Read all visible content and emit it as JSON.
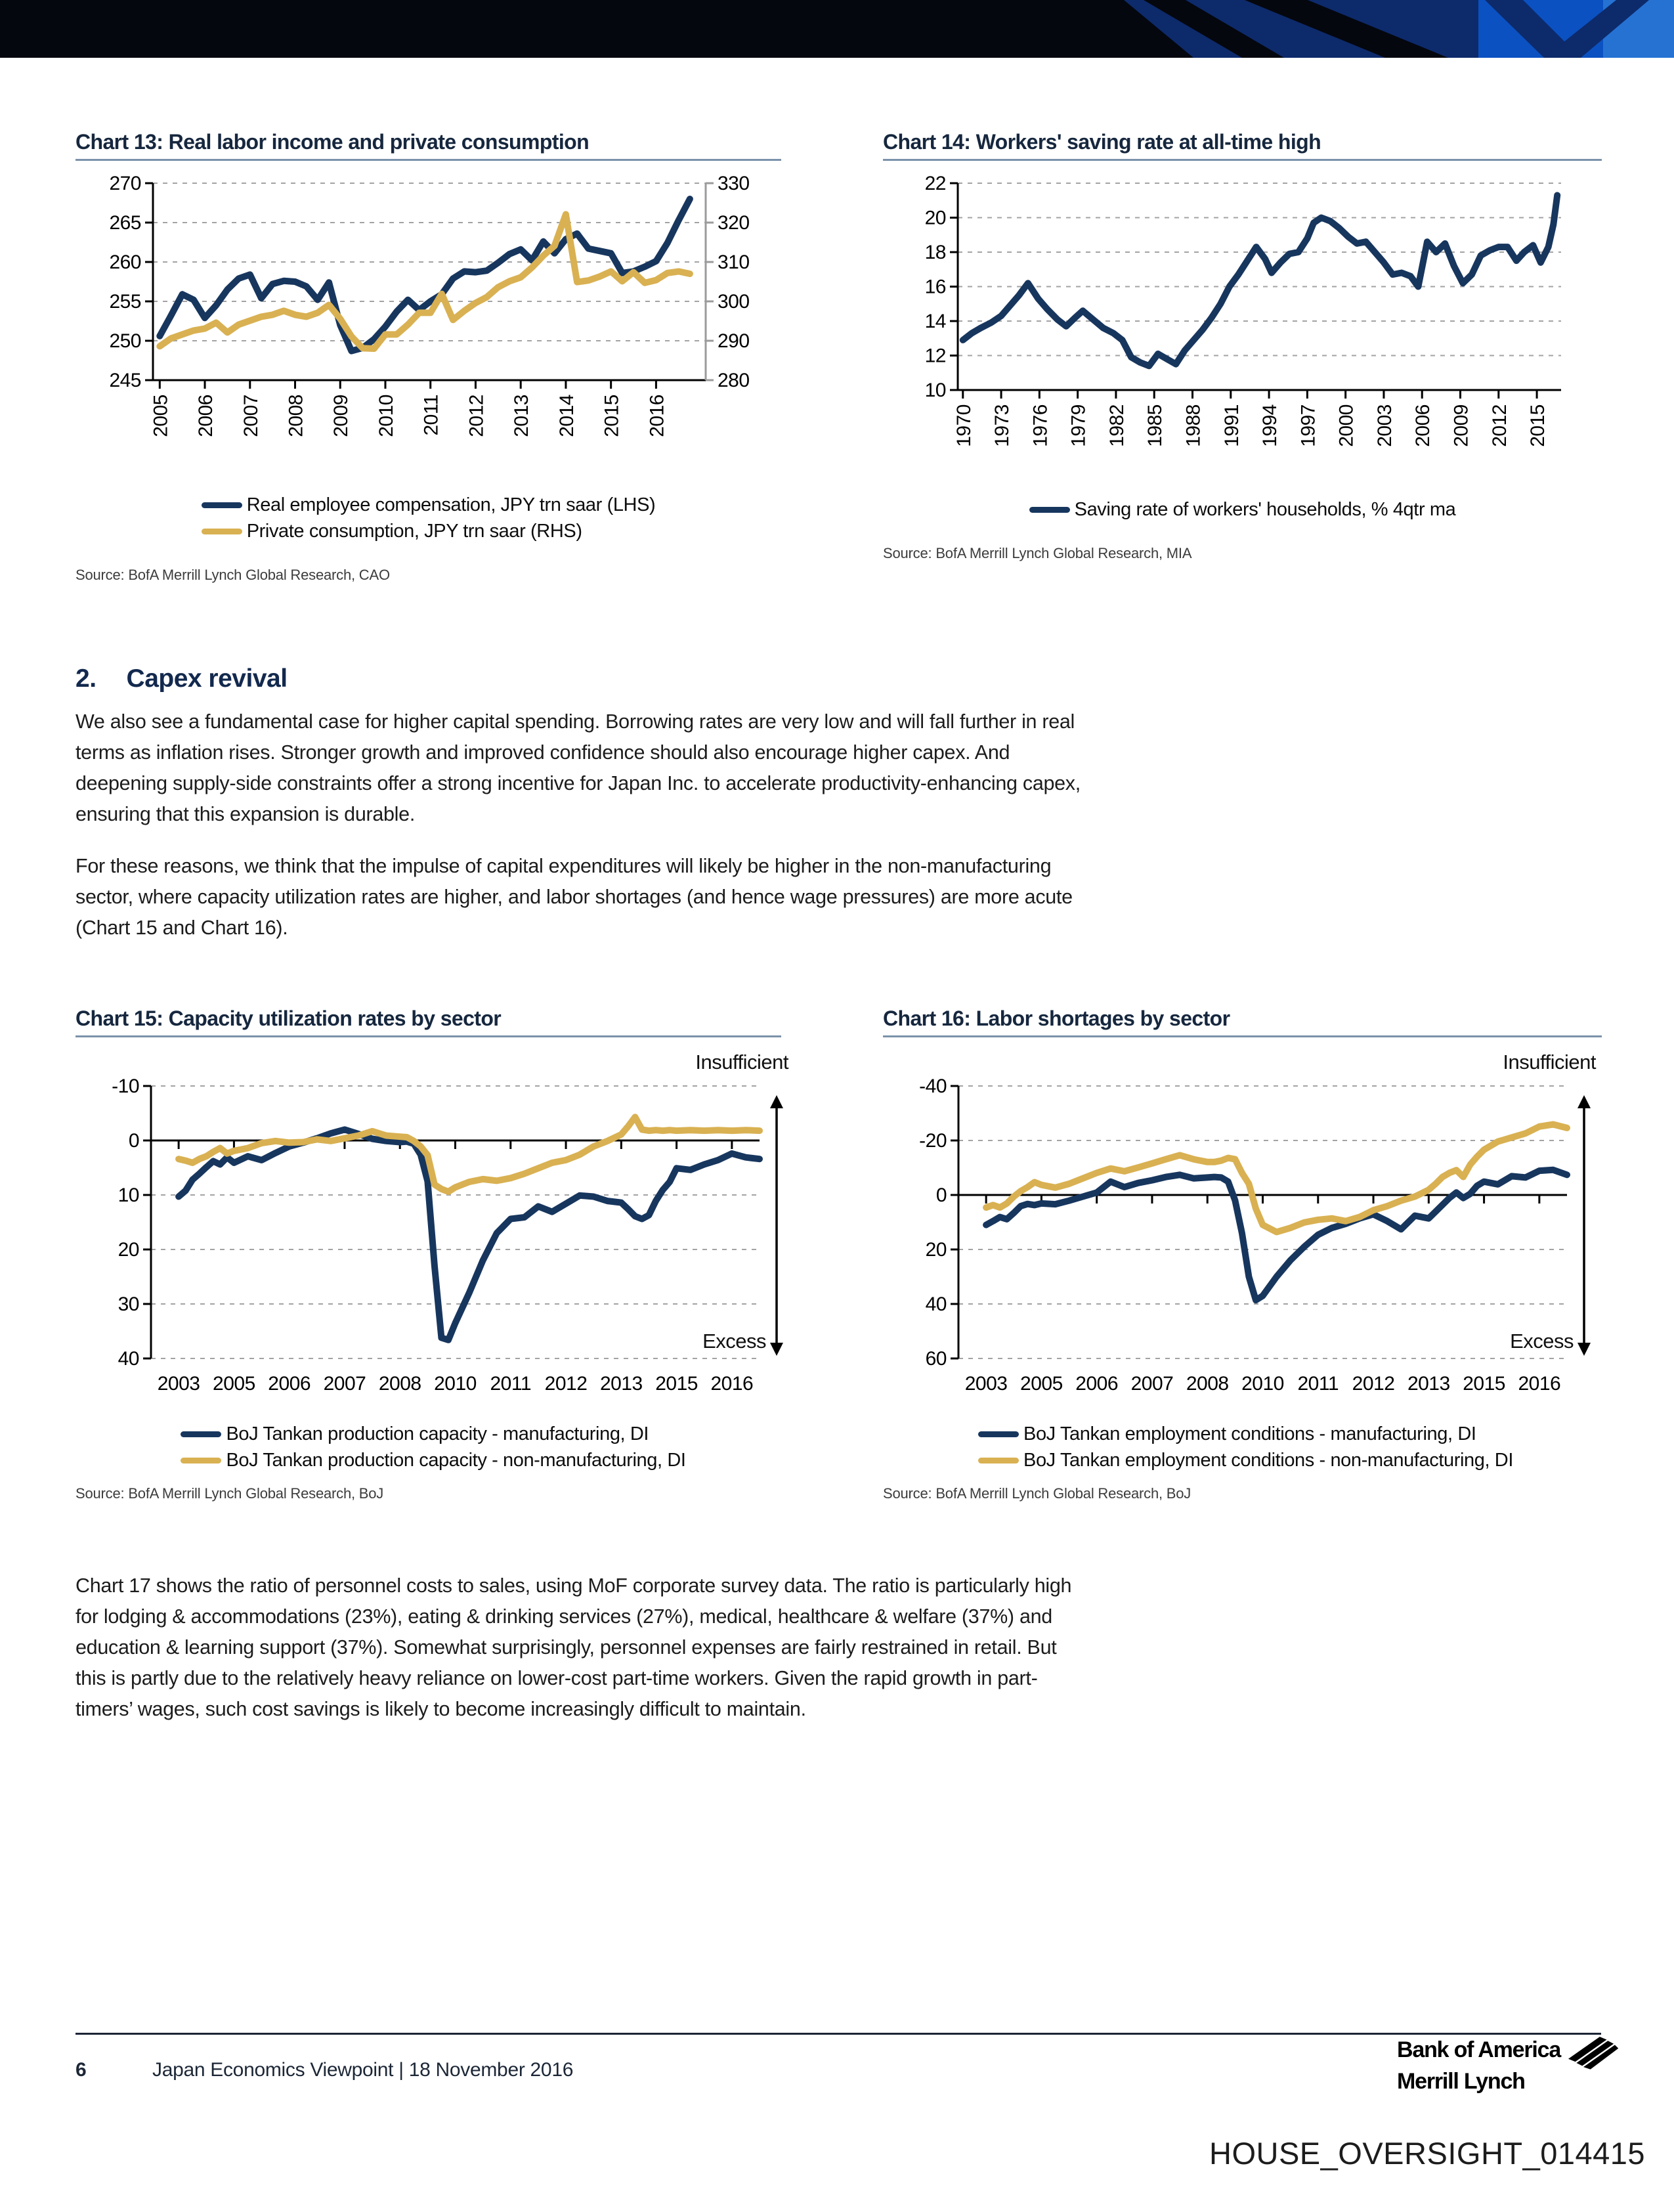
{
  "banner": {
    "background": "#04070e",
    "navy": "#0d2a6b",
    "blue": "#0b51c1",
    "light_blue": "#2572d3"
  },
  "section": {
    "heading_number": "2.",
    "heading_title": "Capex revival",
    "paragraphs": [
      "We also see a fundamental case for higher capital spending. Borrowing rates are very low and will fall further in real terms as inflation rises. Stronger growth and improved confidence should also encourage higher capex. And deepening supply-side constraints offer a strong incentive for Japan Inc. to accelerate productivity-enhancing capex, ensuring that this expansion is durable.",
      "For these reasons, we think that the impulse of capital expenditures will likely be higher in the non-manufacturing sector, where capacity utilization rates are higher, and labor shortages (and hence wage pressures) are more acute (Chart 15 and Chart 16).",
      "Chart 17 shows the ratio of personnel costs to sales, using MoF corporate survey data. The ratio is particularly high for lodging & accommodations (23%), eating & drinking services (27%), medical, healthcare & welfare (37%) and education & learning support (37%). Somewhat surprisingly, personnel expenses are fairly restrained in retail. But this is partly due to the relatively heavy reliance on lower-cost part-time workers. Given the rapid growth in part-timers’ wages, such cost savings is likely to become increasingly difficult to maintain."
    ]
  },
  "footer": {
    "page_number": "6",
    "doc_title": "Japan Economics Viewpoint | 18 November 2016",
    "logo_line1": "Bank of America",
    "logo_line2": "Merrill Lynch"
  },
  "watermark": {
    "text": "HOUSE_OVERSIGHT_014415"
  },
  "chart_data": [
    {
      "id": "chart13",
      "type": "line",
      "title": "Chart 13: Real labor income and private consumption",
      "source": "Source: BofA Merrill Lynch Global Research, CAO",
      "y_axis": {
        "min": 245,
        "max": 270,
        "ticks": [
          245,
          250,
          255,
          260,
          265,
          270
        ],
        "baseline": 245
      },
      "right_axis": {
        "min": 280,
        "max": 330,
        "ticks": [
          280,
          290,
          300,
          310,
          320,
          330
        ]
      },
      "x_axis": {
        "min": 2004.85,
        "max": 2017.1,
        "ticks": [
          2005,
          2006,
          2007,
          2008,
          2009,
          2010,
          2011,
          2012,
          2013,
          2014,
          2015,
          2016
        ],
        "rotation": "vertical"
      },
      "series": [
        {
          "name": "Real employee compensation, JPY trn saar (LHS)",
          "color": "#17365e",
          "axis": "left",
          "x_start": 2005,
          "x_step": 0.25,
          "values": [
            250.6,
            253.2,
            255.9,
            255.2,
            252.9,
            254.5,
            256.5,
            257.9,
            258.4,
            255.4,
            257.2,
            257.6,
            257.5,
            256.9,
            255.2,
            257.4,
            252.0,
            248.7,
            249.1,
            250.2,
            251.8,
            253.7,
            255.2,
            253.9,
            255.0,
            255.9,
            257.9,
            258.8,
            258.7,
            258.9,
            259.9,
            261.0,
            261.6,
            260.2,
            262.6,
            261.1,
            262.9,
            263.6,
            261.7,
            261.4,
            261.1,
            258.6,
            258.8,
            259.4,
            260.1,
            262.4,
            265.3,
            268.0
          ]
        },
        {
          "name": "Private consumption, JPY trn saar (RHS)",
          "color": "#d9b152",
          "axis": "right",
          "x_start": 2005,
          "x_step": 0.25,
          "values": [
            288.6,
            290.6,
            291.6,
            292.6,
            293.1,
            294.6,
            292.1,
            294.1,
            295.1,
            296.1,
            296.6,
            297.6,
            296.6,
            296.1,
            297.1,
            299.1,
            295.6,
            291.1,
            288.1,
            288.0,
            291.6,
            291.6,
            294.1,
            297.1,
            297.1,
            301.9,
            295.3,
            297.6,
            299.6,
            301.1,
            303.6,
            305.1,
            306.1,
            308.6,
            311.6,
            314.1,
            322.1,
            304.9,
            305.3,
            306.3,
            307.6,
            305.1,
            307.4,
            304.7,
            305.4,
            307.2,
            307.6,
            307.0
          ]
        }
      ]
    },
    {
      "id": "chart14",
      "type": "line",
      "title": "Chart 14: Workers' saving rate at all-time high",
      "source": "Source: BofA Merrill Lynch Global Research, MIA",
      "y_axis": {
        "min": 10,
        "max": 22,
        "ticks": [
          10,
          12,
          14,
          16,
          18,
          20,
          22
        ],
        "baseline": 10
      },
      "x_axis": {
        "min": 1969.6,
        "max": 2016.9,
        "ticks": [
          1970,
          1973,
          1976,
          1979,
          1982,
          1985,
          1988,
          1991,
          1994,
          1997,
          2000,
          2003,
          2006,
          2009,
          2012,
          2015
        ],
        "rotation": "vertical"
      },
      "series": [
        {
          "name": "Saving rate of workers' households, % 4qtr ma",
          "color": "#17365e",
          "axis": "left",
          "points": [
            [
              1970.0,
              12.9
            ],
            [
              1970.7,
              13.3
            ],
            [
              1971.4,
              13.6
            ],
            [
              1972.2,
              13.9
            ],
            [
              1973.0,
              14.3
            ],
            [
              1973.7,
              14.9
            ],
            [
              1974.4,
              15.5
            ],
            [
              1975.1,
              16.2
            ],
            [
              1975.9,
              15.3
            ],
            [
              1976.6,
              14.7
            ],
            [
              1977.4,
              14.1
            ],
            [
              1978.1,
              13.7
            ],
            [
              1978.8,
              14.2
            ],
            [
              1979.4,
              14.6
            ],
            [
              1980.2,
              14.1
            ],
            [
              1981.0,
              13.6
            ],
            [
              1981.8,
              13.3
            ],
            [
              1982.5,
              12.9
            ],
            [
              1983.2,
              11.9
            ],
            [
              1983.9,
              11.6
            ],
            [
              1984.6,
              11.4
            ],
            [
              1985.3,
              12.1
            ],
            [
              1986.0,
              11.8
            ],
            [
              1986.7,
              11.5
            ],
            [
              1987.4,
              12.3
            ],
            [
              1988.1,
              12.9
            ],
            [
              1988.8,
              13.5
            ],
            [
              1989.5,
              14.2
            ],
            [
              1990.2,
              15.0
            ],
            [
              1990.9,
              16.0
            ],
            [
              1991.6,
              16.7
            ],
            [
              1992.3,
              17.5
            ],
            [
              1993.0,
              18.3
            ],
            [
              1993.7,
              17.6
            ],
            [
              1994.2,
              16.8
            ],
            [
              1994.9,
              17.4
            ],
            [
              1995.6,
              17.9
            ],
            [
              1996.3,
              18.0
            ],
            [
              1997.0,
              18.8
            ],
            [
              1997.5,
              19.7
            ],
            [
              1998.1,
              20.0
            ],
            [
              1998.8,
              19.8
            ],
            [
              1999.5,
              19.4
            ],
            [
              2000.2,
              18.9
            ],
            [
              2000.9,
              18.5
            ],
            [
              2001.6,
              18.6
            ],
            [
              2002.3,
              18.0
            ],
            [
              2003.0,
              17.4
            ],
            [
              2003.7,
              16.7
            ],
            [
              2004.4,
              16.8
            ],
            [
              2005.1,
              16.6
            ],
            [
              2005.7,
              16.0
            ],
            [
              2006.4,
              18.6
            ],
            [
              2007.1,
              18.0
            ],
            [
              2007.8,
              18.5
            ],
            [
              2008.5,
              17.2
            ],
            [
              2009.2,
              16.2
            ],
            [
              2009.9,
              16.7
            ],
            [
              2010.6,
              17.8
            ],
            [
              2011.3,
              18.1
            ],
            [
              2012.0,
              18.3
            ],
            [
              2012.7,
              18.3
            ],
            [
              2013.4,
              17.5
            ],
            [
              2014.0,
              18.0
            ],
            [
              2014.7,
              18.4
            ],
            [
              2015.3,
              17.4
            ],
            [
              2015.9,
              18.3
            ],
            [
              2016.3,
              19.6
            ],
            [
              2016.6,
              21.3
            ]
          ]
        }
      ]
    },
    {
      "id": "chart15",
      "type": "line",
      "title": "Chart 15: Capacity utilization rates by sector",
      "source": "Source: BofA Merrill Lynch Global Research, BoJ",
      "annotation_top": "Insufficient",
      "annotation_bottom": "Excess",
      "y_axis": {
        "min": -10,
        "max": 40,
        "ticks": [
          -10,
          0,
          10,
          20,
          30,
          40
        ],
        "baseline": 0,
        "inverted": true
      },
      "x_axis": {
        "anchors": [
          2003,
          2005,
          2006,
          2007,
          2008,
          2010,
          2011,
          2012,
          2013,
          2015,
          2016
        ],
        "labels": [
          "2003",
          "2005",
          "2006",
          "2007",
          "2008",
          "2010",
          "2011",
          "2012",
          "2013",
          "2015",
          "2016"
        ]
      },
      "series": [
        {
          "name": "BoJ Tankan production capacity - manufacturing, DI",
          "color": "#17365e",
          "axis": "left",
          "x_start": 2003,
          "x_step": 0.25,
          "values": [
            10.3,
            9.2,
            7.2,
            6.1,
            4.9,
            3.8,
            4.4,
            3.1,
            4.1,
            2.9,
            3.6,
            2.3,
            1.1,
            0.4,
            -0.4,
            -1.3,
            -2.0,
            -1.2,
            -0.3,
            0.1,
            0.3,
            0.2,
            0.6,
            2.6,
            7.5,
            23.0,
            36.2,
            36.6,
            33.5,
            28.0,
            22.0,
            17.0,
            14.4,
            14.1,
            12.1,
            13.1,
            11.6,
            10.1,
            10.3,
            11.1,
            11.4,
            12.6,
            13.9,
            14.4,
            13.7,
            11.1,
            9.1,
            7.6,
            5.1,
            5.4,
            4.4,
            3.6,
            2.4,
            3.1,
            3.4
          ]
        },
        {
          "name": "BoJ Tankan production capacity - non-manufacturing, DI",
          "color": "#d9b152",
          "axis": "left",
          "x_start": 2003,
          "x_step": 0.25,
          "values": [
            3.4,
            3.7,
            4.1,
            3.4,
            2.9,
            2.1,
            1.4,
            2.4,
            1.9,
            1.4,
            0.5,
            0.1,
            0.4,
            0.3,
            -0.2,
            0.1,
            -0.4,
            -0.9,
            -1.7,
            -0.9,
            -0.7,
            -0.6,
            0.1,
            1.1,
            2.7,
            8.1,
            8.9,
            9.4,
            8.6,
            7.6,
            7.1,
            7.4,
            6.9,
            6.1,
            5.1,
            4.1,
            3.6,
            2.6,
            1.1,
            0.1,
            -1.1,
            -2.6,
            -4.3,
            -2.0,
            -1.8,
            -1.9,
            -1.8,
            -1.9,
            -1.8,
            -1.9,
            -1.8,
            -1.9,
            -1.8,
            -1.9,
            -1.8
          ]
        }
      ]
    },
    {
      "id": "chart16",
      "type": "line",
      "title": "Chart 16: Labor shortages by sector",
      "source": "Source: BofA Merrill Lynch Global Research, BoJ",
      "annotation_top": "Insufficient",
      "annotation_bottom": "Excess",
      "y_axis": {
        "min": -40,
        "max": 60,
        "ticks": [
          -40,
          -20,
          0,
          20,
          40,
          60
        ],
        "baseline": 0,
        "inverted": true
      },
      "x_axis": {
        "anchors": [
          2003,
          2005,
          2006,
          2007,
          2008,
          2010,
          2011,
          2012,
          2013,
          2015,
          2016
        ],
        "labels": [
          "2003",
          "2005",
          "2006",
          "2007",
          "2008",
          "2010",
          "2011",
          "2012",
          "2013",
          "2015",
          "2016"
        ]
      },
      "series": [
        {
          "name": "BoJ Tankan employment conditions - manufacturing, DI",
          "color": "#17365e",
          "axis": "left",
          "x_start": 2003,
          "x_step": 0.25,
          "values": [
            11.0,
            9.6,
            8.1,
            8.9,
            6.6,
            4.1,
            3.3,
            3.7,
            3.1,
            3.4,
            2.1,
            0.6,
            -0.9,
            -4.9,
            -2.9,
            -4.4,
            -5.4,
            -6.6,
            -7.4,
            -6.1,
            -6.4,
            -6.6,
            -6.4,
            -4.9,
            2.0,
            14.0,
            30.0,
            38.6,
            37.0,
            30.0,
            24.0,
            19.0,
            14.6,
            12.1,
            10.6,
            8.6,
            7.1,
            9.6,
            12.6,
            7.6,
            8.6,
            6.1,
            3.6,
            1.1,
            -0.9,
            1.1,
            -0.4,
            -3.4,
            -4.9,
            -3.9,
            -6.9,
            -6.4,
            -8.9,
            -9.2,
            -7.4
          ]
        },
        {
          "name": "BoJ Tankan employment conditions - non-manufacturing, DI",
          "color": "#d9b152",
          "axis": "left",
          "x_start": 2003,
          "x_step": 0.25,
          "values": [
            4.6,
            3.7,
            4.6,
            3.1,
            0.6,
            -1.4,
            -2.9,
            -4.7,
            -3.7,
            -2.7,
            -4.1,
            -6.1,
            -8.1,
            -9.7,
            -8.7,
            -10.1,
            -11.6,
            -13.1,
            -14.6,
            -13.1,
            -12.1,
            -12.1,
            -12.6,
            -13.6,
            -13.1,
            -8.1,
            -4.1,
            5.0,
            11.0,
            13.6,
            12.1,
            10.1,
            9.1,
            8.6,
            9.6,
            8.1,
            5.6,
            4.1,
            2.1,
            0.6,
            -1.9,
            -4.1,
            -6.6,
            -8.1,
            -9.1,
            -6.6,
            -11.1,
            -14.1,
            -16.6,
            -19.6,
            -21.1,
            -22.6,
            -25.1,
            -25.9,
            -24.6
          ]
        }
      ]
    }
  ]
}
